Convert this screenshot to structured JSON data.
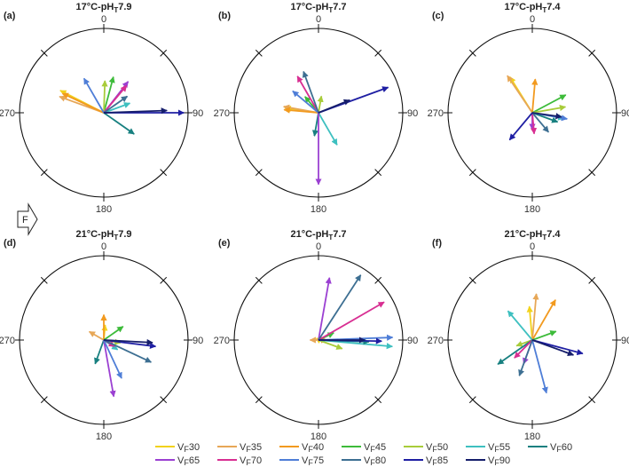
{
  "chart_data": {
    "type": "polar-vector",
    "direction_labels": [
      "0",
      "90",
      "180",
      "270"
    ],
    "flow_label": "F",
    "legend_prefix": "V",
    "legend_prefix_sub": "F",
    "series": [
      {
        "name": "30",
        "color": "#f2d21b"
      },
      {
        "name": "35",
        "color": "#e7a757"
      },
      {
        "name": "40",
        "color": "#f29a1f"
      },
      {
        "name": "45",
        "color": "#3dbb3a"
      },
      {
        "name": "50",
        "color": "#a8cc3a"
      },
      {
        "name": "55",
        "color": "#3ec0c0"
      },
      {
        "name": "60",
        "color": "#188080"
      },
      {
        "name": "65",
        "color": "#9b40d2"
      },
      {
        "name": "70",
        "color": "#d82f92"
      },
      {
        "name": "75",
        "color": "#4f7ed7"
      },
      {
        "name": "80",
        "color": "#3d6f92"
      },
      {
        "name": "85",
        "color": "#1f1fa3"
      },
      {
        "name": "90",
        "color": "#161e6b"
      }
    ],
    "panels": [
      {
        "letter": "(a)",
        "title_main": "17°C-pH",
        "title_sub": "T",
        "title_tail": "7.9",
        "vectors": [
          {
            "series": "30",
            "angle": 297,
            "magnitude": 0.58
          },
          {
            "series": "35",
            "angle": 290,
            "magnitude": 0.56
          },
          {
            "series": "40",
            "angle": 295,
            "magnitude": 0.54
          },
          {
            "series": "45",
            "angle": 15,
            "magnitude": 0.44
          },
          {
            "series": "50",
            "angle": 2,
            "magnitude": 0.38
          },
          {
            "series": "55",
            "angle": 70,
            "magnitude": 0.33
          },
          {
            "series": "60",
            "angle": 125,
            "magnitude": 0.44
          },
          {
            "series": "65",
            "angle": 38,
            "magnitude": 0.47
          },
          {
            "series": "70",
            "angle": 40,
            "magnitude": 0.42
          },
          {
            "series": "75",
            "angle": 330,
            "magnitude": 0.47
          },
          {
            "series": "80",
            "angle": 55,
            "magnitude": 0.34
          },
          {
            "series": "85",
            "angle": 90,
            "magnitude": 0.95
          },
          {
            "series": "90",
            "angle": 88,
            "magnitude": 0.75
          }
        ]
      },
      {
        "letter": "(b)",
        "title_main": "17°C-pH",
        "title_sub": "T",
        "title_tail": "7.7",
        "vectors": [
          {
            "series": "30",
            "angle": 278,
            "magnitude": 0.4
          },
          {
            "series": "35",
            "angle": 280,
            "magnitude": 0.42
          },
          {
            "series": "40",
            "angle": 275,
            "magnitude": 0.41
          },
          {
            "series": "45",
            "angle": 320,
            "magnitude": 0.25
          },
          {
            "series": "50",
            "angle": 10,
            "magnitude": 0.2
          },
          {
            "series": "55",
            "angle": 150,
            "magnitude": 0.44
          },
          {
            "series": "60",
            "angle": 190,
            "magnitude": 0.28
          },
          {
            "series": "65",
            "angle": 180,
            "magnitude": 0.85
          },
          {
            "series": "70",
            "angle": 330,
            "magnitude": 0.5
          },
          {
            "series": "75",
            "angle": 310,
            "magnitude": 0.4
          },
          {
            "series": "80",
            "angle": 340,
            "magnitude": 0.52
          },
          {
            "series": "85",
            "angle": 70,
            "magnitude": 0.88
          },
          {
            "series": "90",
            "angle": 68,
            "magnitude": 0.4
          }
        ]
      },
      {
        "letter": "(c)",
        "title_main": "17°C-pH",
        "title_sub": "T",
        "title_tail": "7.4",
        "vectors": [
          {
            "series": "30",
            "angle": 328,
            "magnitude": 0.5
          },
          {
            "series": "35",
            "angle": 326,
            "magnitude": 0.53
          },
          {
            "series": "40",
            "angle": 5,
            "magnitude": 0.4
          },
          {
            "series": "45",
            "angle": 62,
            "magnitude": 0.45
          },
          {
            "series": "50",
            "angle": 80,
            "magnitude": 0.4
          },
          {
            "series": "55",
            "angle": 100,
            "magnitude": 0.38
          },
          {
            "series": "60",
            "angle": 110,
            "magnitude": 0.32
          },
          {
            "series": "65",
            "angle": 180,
            "magnitude": 0.2
          },
          {
            "series": "70",
            "angle": 175,
            "magnitude": 0.25
          },
          {
            "series": "75",
            "angle": 100,
            "magnitude": 0.42
          },
          {
            "series": "80",
            "angle": 140,
            "magnitude": 0.3
          },
          {
            "series": "85",
            "angle": 220,
            "magnitude": 0.42
          },
          {
            "series": "90",
            "angle": 98,
            "magnitude": 0.35
          }
        ]
      },
      {
        "letter": "(d)",
        "title_main": "21°C-pH",
        "title_sub": "T",
        "title_tail": "7.9",
        "vectors": [
          {
            "series": "30",
            "angle": 5,
            "magnitude": 0.18
          },
          {
            "series": "35",
            "angle": 300,
            "magnitude": 0.2
          },
          {
            "series": "40",
            "angle": 0,
            "magnitude": 0.3
          },
          {
            "series": "45",
            "angle": 55,
            "magnitude": 0.28
          },
          {
            "series": "50",
            "angle": 100,
            "magnitude": 0.2
          },
          {
            "series": "55",
            "angle": 125,
            "magnitude": 0.2
          },
          {
            "series": "60",
            "angle": 200,
            "magnitude": 0.3
          },
          {
            "series": "65",
            "angle": 170,
            "magnitude": 0.68
          },
          {
            "series": "70",
            "angle": 120,
            "magnitude": 0.15
          },
          {
            "series": "75",
            "angle": 155,
            "magnitude": 0.5
          },
          {
            "series": "80",
            "angle": 115,
            "magnitude": 0.62
          },
          {
            "series": "85",
            "angle": 97,
            "magnitude": 0.62
          },
          {
            "series": "90",
            "angle": 93,
            "magnitude": 0.58
          }
        ]
      },
      {
        "letter": "(e)",
        "title_main": "21°C-pH",
        "title_sub": "T",
        "title_tail": "7.7",
        "vectors": [
          {
            "series": "30",
            "angle": 60,
            "magnitude": 0.05
          },
          {
            "series": "35",
            "angle": 270,
            "magnitude": 0.1
          },
          {
            "series": "40",
            "angle": 90,
            "magnitude": 0.1
          },
          {
            "series": "45",
            "angle": 65,
            "magnitude": 0.2
          },
          {
            "series": "50",
            "angle": 110,
            "magnitude": 0.3
          },
          {
            "series": "55",
            "angle": 95,
            "magnitude": 0.88
          },
          {
            "series": "60",
            "angle": 92,
            "magnitude": 0.6
          },
          {
            "series": "65",
            "angle": 10,
            "magnitude": 0.75
          },
          {
            "series": "70",
            "angle": 60,
            "magnitude": 0.9
          },
          {
            "series": "75",
            "angle": 88,
            "magnitude": 0.88
          },
          {
            "series": "80",
            "angle": 33,
            "magnitude": 0.92
          },
          {
            "series": "85",
            "angle": 91,
            "magnitude": 0.75
          },
          {
            "series": "90",
            "angle": 90,
            "magnitude": 0.55
          }
        ]
      },
      {
        "letter": "(f)",
        "title_main": "21°C-pH",
        "title_sub": "T",
        "title_tail": "7.4",
        "vectors": [
          {
            "series": "30",
            "angle": 355,
            "magnitude": 0.4
          },
          {
            "series": "35",
            "angle": 5,
            "magnitude": 0.55
          },
          {
            "series": "40",
            "angle": 30,
            "magnitude": 0.55
          },
          {
            "series": "45",
            "angle": 70,
            "magnitude": 0.3
          },
          {
            "series": "50",
            "angle": 250,
            "magnitude": 0.2
          },
          {
            "series": "55",
            "angle": 320,
            "magnitude": 0.45
          },
          {
            "series": "60",
            "angle": 235,
            "magnitude": 0.5
          },
          {
            "series": "65",
            "angle": 200,
            "magnitude": 0.3
          },
          {
            "series": "70",
            "angle": 225,
            "magnitude": 0.3
          },
          {
            "series": "75",
            "angle": 165,
            "magnitude": 0.65
          },
          {
            "series": "80",
            "angle": 200,
            "magnitude": 0.45
          },
          {
            "series": "85",
            "angle": 105,
            "magnitude": 0.62
          },
          {
            "series": "90",
            "angle": 110,
            "magnitude": 0.52
          }
        ]
      }
    ]
  }
}
